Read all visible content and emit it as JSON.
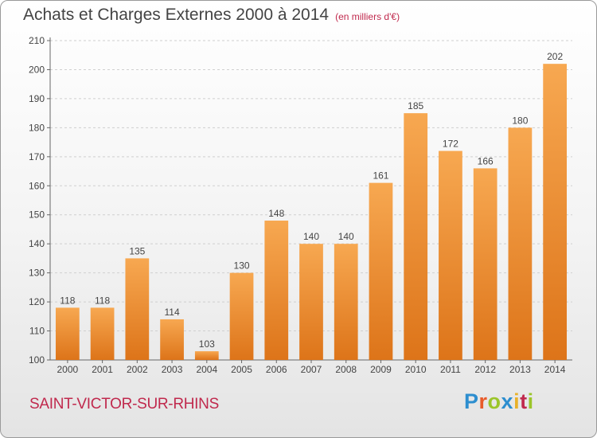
{
  "title": "Achats et Charges Externes 2000 à 2014",
  "subtitle": "(en milliers d'€)",
  "commune": "SAINT-VICTOR-SUR-RHINS",
  "logo": {
    "text": "Proxiti"
  },
  "colors": {
    "bar_light": "#f5a14a",
    "bar_dark": "#e07a1f",
    "title_accent": "#c0294d"
  },
  "chart_data": {
    "type": "bar",
    "title": "Achats et Charges Externes 2000 à 2014",
    "subtitle": "(en milliers d'€)",
    "categories": [
      "2000",
      "2001",
      "2002",
      "2003",
      "2004",
      "2005",
      "2006",
      "2007",
      "2008",
      "2009",
      "2010",
      "2011",
      "2012",
      "2013",
      "2014"
    ],
    "values": [
      118,
      118,
      135,
      114,
      103,
      130,
      148,
      140,
      140,
      161,
      185,
      172,
      166,
      180,
      202
    ],
    "yticks": [
      100,
      110,
      120,
      130,
      140,
      150,
      160,
      170,
      180,
      190,
      200,
      210
    ],
    "ylim": [
      100,
      210
    ],
    "grid": true,
    "legend": "none"
  }
}
